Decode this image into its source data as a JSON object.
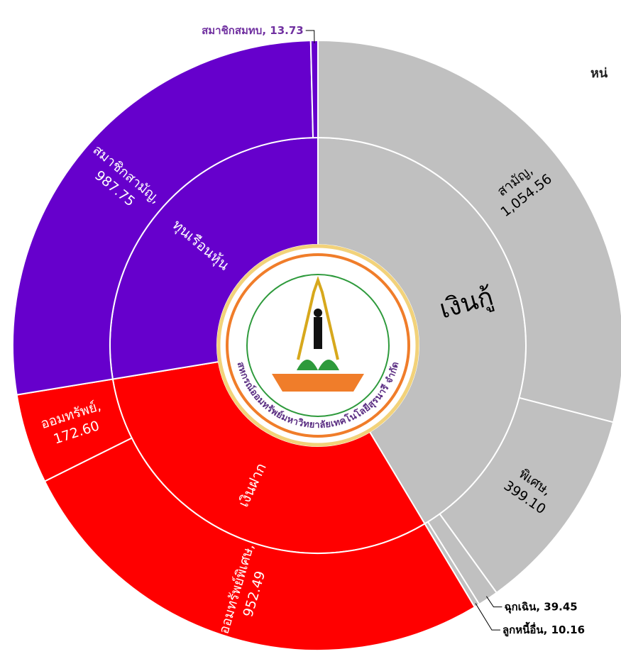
{
  "chart_data": {
    "type": "sunburst",
    "subtitle": "หน่",
    "logo_text": "สหกรณ์ออมทรัพย์มหาวิทยาลัยเทคโนโลยีสุรนารี จำกัด",
    "series": [
      {
        "name": "เงินกู้",
        "color": "#c0c0c0",
        "label_color": "#000000",
        "outside_label_color": "#000000",
        "categories": [
          "สามัญ,",
          "พิเศษ,",
          "ฉุกเฉิน,",
          "ลูกหนี้อื่น,"
        ],
        "values": [
          1054.56,
          399.1,
          39.45,
          10.16
        ],
        "value_labels": [
          "1,054.56",
          "399.10",
          "39.45",
          "10.16"
        ]
      },
      {
        "name": "เงินฝาก",
        "color": "#ff0000",
        "label_color": "#ffffff",
        "outside_label_color": "#000000",
        "categories": [
          "ออมทรัพย์พิเศษ,",
          "ออมทรัพย์,"
        ],
        "values": [
          952.49,
          172.6
        ],
        "value_labels": [
          "952.49",
          "172.60"
        ]
      },
      {
        "name": "ทุนเรือนหุ้น",
        "color": "#6600cc",
        "label_color": "#ffffff",
        "outside_label_color": "#7030a0",
        "categories": [
          "สมาชิกสามัญ,",
          "สมาชิกสมทบ,"
        ],
        "values": [
          987.75,
          13.73
        ],
        "value_labels": [
          "987.75",
          "13.73"
        ]
      }
    ]
  }
}
